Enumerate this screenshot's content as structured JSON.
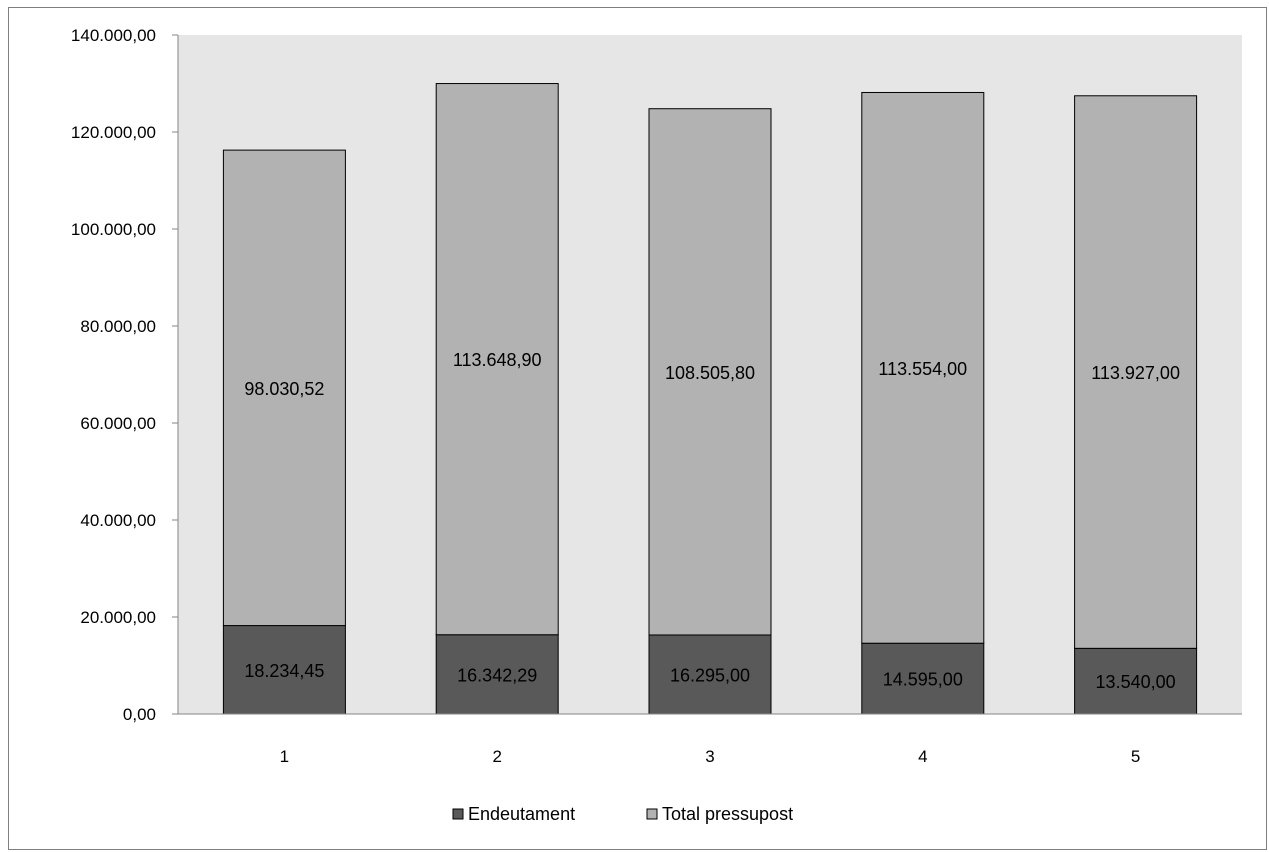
{
  "chart_data": {
    "type": "bar",
    "stacked": true,
    "categories": [
      "1",
      "2",
      "3",
      "4",
      "5"
    ],
    "series": [
      {
        "name": "Endeutament",
        "color": "#595959",
        "values": [
          18234.45,
          16342.29,
          16295.0,
          14595.0,
          13540.0
        ],
        "labels": [
          "18.234,45",
          "16.342,29",
          "16.295,00",
          "14.595,00",
          "13.540,00"
        ]
      },
      {
        "name": "Total pressupost",
        "color": "#b2b2b2",
        "values": [
          98030.52,
          113648.9,
          108505.8,
          113554.0,
          113927.0
        ],
        "labels": [
          "98.030,52",
          "113.648,90",
          "108.505,80",
          "113.554,00",
          "113.927,00"
        ]
      }
    ],
    "ylim": [
      0,
      140000
    ],
    "yticks": [
      0,
      20000,
      40000,
      60000,
      80000,
      100000,
      120000,
      140000
    ],
    "ytick_labels": [
      "0,00",
      "20.000,00",
      "40.000,00",
      "60.000,00",
      "80.000,00",
      "100.000,00",
      "120.000,00",
      "140.000,00"
    ],
    "plot_background": "#e6e6e6",
    "grid": false,
    "legend_position": "bottom",
    "title": "",
    "xlabel": "",
    "ylabel": ""
  }
}
